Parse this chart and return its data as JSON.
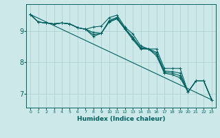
{
  "xlabel": "Humidex (Indice chaleur)",
  "bg_color": "#cce8e8",
  "line_color": "#006060",
  "grid_color": "#aacece",
  "xlim": [
    -0.5,
    23.5
  ],
  "ylim": [
    6.55,
    9.85
  ],
  "yticks": [
    7,
    8,
    9
  ],
  "xticks": [
    0,
    1,
    2,
    3,
    4,
    5,
    6,
    7,
    8,
    9,
    10,
    11,
    12,
    13,
    14,
    15,
    16,
    17,
    18,
    19,
    20,
    21,
    22,
    23
  ],
  "lines": [
    [
      9.52,
      9.28,
      9.25,
      9.22,
      9.25,
      9.22,
      9.1,
      9.05,
      9.12,
      9.15,
      9.42,
      9.5,
      9.12,
      8.9,
      8.52,
      8.42,
      8.42,
      7.8,
      7.8,
      7.8,
      7.05,
      7.4,
      7.4,
      6.8
    ],
    [
      9.52,
      9.28,
      9.25,
      9.22,
      9.25,
      9.22,
      9.1,
      9.05,
      8.82,
      8.92,
      9.28,
      9.38,
      9.05,
      8.72,
      8.42,
      8.42,
      8.2,
      7.65,
      7.6,
      7.5,
      7.05,
      7.4,
      7.4,
      6.8
    ],
    [
      9.52,
      9.28,
      9.25,
      9.22,
      9.25,
      9.22,
      9.1,
      9.05,
      8.95,
      8.92,
      9.33,
      9.43,
      9.08,
      8.8,
      8.47,
      8.42,
      8.32,
      7.72,
      7.7,
      7.65,
      7.05,
      7.4,
      7.4,
      6.8
    ],
    [
      9.52,
      9.28,
      9.25,
      9.22,
      9.25,
      9.22,
      9.1,
      9.05,
      8.88,
      8.92,
      9.3,
      9.4,
      9.06,
      8.76,
      8.44,
      8.42,
      8.26,
      7.68,
      7.65,
      7.57,
      7.05,
      7.4,
      7.4,
      6.8
    ]
  ],
  "straight_line": [
    9.52,
    6.8
  ]
}
